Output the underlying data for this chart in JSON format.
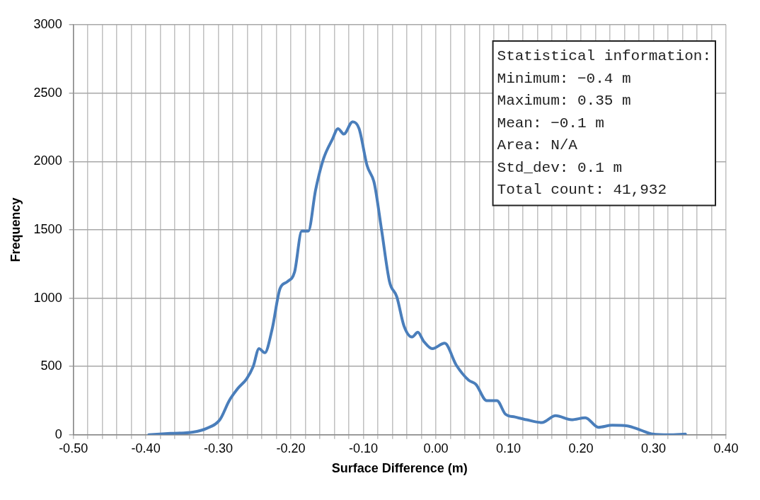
{
  "chart_data": {
    "type": "line",
    "xlabel": "Surface Difference (m)",
    "ylabel": "Frequency",
    "x": [
      -0.396,
      -0.366,
      -0.335,
      -0.317,
      -0.298,
      -0.285,
      -0.273,
      -0.261,
      -0.252,
      -0.244,
      -0.236,
      -0.226,
      -0.215,
      -0.205,
      -0.195,
      -0.185,
      -0.176,
      -0.166,
      -0.155,
      -0.143,
      -0.135,
      -0.127,
      -0.115,
      -0.106,
      -0.095,
      -0.085,
      -0.075,
      -0.064,
      -0.054,
      -0.044,
      -0.033,
      -0.025,
      -0.017,
      -0.005,
      0.012,
      0.028,
      0.045,
      0.055,
      0.07,
      0.084,
      0.096,
      0.109,
      0.125,
      0.146,
      0.165,
      0.187,
      0.206,
      0.224,
      0.243,
      0.264,
      0.282,
      0.299,
      0.321,
      0.344
    ],
    "series": [
      {
        "color": "#4a7ebb",
        "values": [
          0,
          10,
          20,
          45,
          110,
          250,
          340,
          410,
          500,
          630,
          600,
          770,
          1070,
          1120,
          1190,
          1490,
          1490,
          1790,
          2020,
          2160,
          2240,
          2200,
          2290,
          2240,
          1970,
          1840,
          1500,
          1120,
          1010,
          795,
          715,
          750,
          685,
          630,
          670,
          510,
          400,
          370,
          250,
          250,
          150,
          130,
          110,
          90,
          140,
          110,
          125,
          55,
          70,
          65,
          35,
          5,
          0,
          5
        ]
      }
    ],
    "xlim": [
      -0.5,
      0.4
    ],
    "xticks": [
      {
        "value": -0.5,
        "label": "-0.50"
      },
      {
        "value": -0.48,
        "label": null
      },
      {
        "value": -0.46,
        "label": null
      },
      {
        "value": -0.44,
        "label": null
      },
      {
        "value": -0.42,
        "label": null
      },
      {
        "value": -0.4,
        "label": "-0.40"
      },
      {
        "value": -0.38,
        "label": null
      },
      {
        "value": -0.36,
        "label": null
      },
      {
        "value": -0.34,
        "label": null
      },
      {
        "value": -0.32,
        "label": null
      },
      {
        "value": -0.3,
        "label": "-0.30"
      },
      {
        "value": -0.28,
        "label": null
      },
      {
        "value": -0.26,
        "label": null
      },
      {
        "value": -0.24,
        "label": null
      },
      {
        "value": -0.22,
        "label": null
      },
      {
        "value": -0.2,
        "label": "-0.20"
      },
      {
        "value": -0.18,
        "label": null
      },
      {
        "value": -0.16,
        "label": null
      },
      {
        "value": -0.14,
        "label": null
      },
      {
        "value": -0.12,
        "label": null
      },
      {
        "value": -0.1,
        "label": "-0.10"
      },
      {
        "value": -0.08,
        "label": null
      },
      {
        "value": -0.06,
        "label": null
      },
      {
        "value": -0.04,
        "label": null
      },
      {
        "value": -0.02,
        "label": null
      },
      {
        "value": 0,
        "label": "0.00"
      },
      {
        "value": 0.02,
        "label": null
      },
      {
        "value": 0.04,
        "label": null
      },
      {
        "value": 0.06,
        "label": null
      },
      {
        "value": 0.08,
        "label": null
      },
      {
        "value": 0.1,
        "label": "0.10"
      },
      {
        "value": 0.12,
        "label": null
      },
      {
        "value": 0.14,
        "label": null
      },
      {
        "value": 0.16,
        "label": null
      },
      {
        "value": 0.18,
        "label": null
      },
      {
        "value": 0.2,
        "label": "0.20"
      },
      {
        "value": 0.22,
        "label": null
      },
      {
        "value": 0.24,
        "label": null
      },
      {
        "value": 0.26,
        "label": null
      },
      {
        "value": 0.28,
        "label": null
      },
      {
        "value": 0.3,
        "label": "0.30"
      },
      {
        "value": 0.32,
        "label": null
      },
      {
        "value": 0.34,
        "label": null
      },
      {
        "value": 0.36,
        "label": null
      },
      {
        "value": 0.38,
        "label": null
      },
      {
        "value": 0.4,
        "label": "0.40"
      }
    ],
    "ylim": [
      0,
      3000
    ],
    "yticks": [
      0,
      500,
      1000,
      1500,
      2000,
      2500,
      3000
    ],
    "grid": true,
    "legend": false,
    "marker": "none",
    "line_style": "solid",
    "annotations": [
      "Statistical information:",
      "Minimum: −0.4 m",
      "Maximum: 0.35 m",
      "Mean: −0.1 m",
      "Area: N/A",
      "Std_dev: 0.1 m",
      "Total count: 41,932"
    ]
  }
}
